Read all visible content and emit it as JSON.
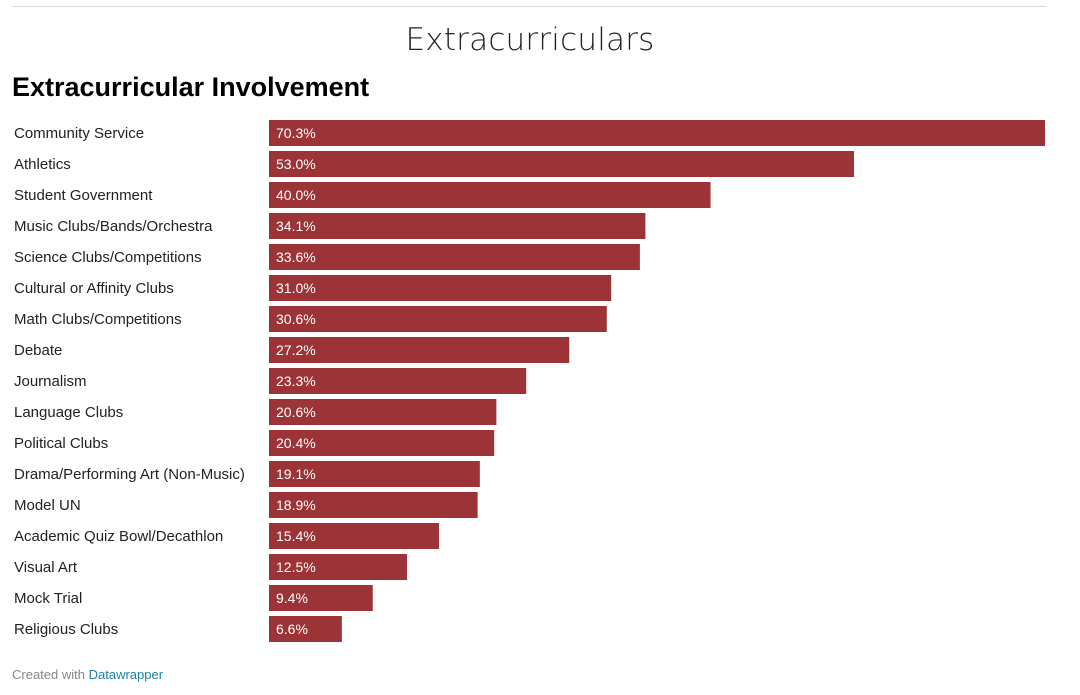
{
  "page": {
    "section_heading": "Extracurriculars"
  },
  "footer": {
    "prefix": "Created with",
    "link_text": "Datawrapper"
  },
  "colors": {
    "bar": "#9b3337",
    "bar_label": "#ffffff",
    "category_label": "#222222",
    "link": "#1d81a2"
  },
  "chart_data": {
    "type": "bar",
    "orientation": "horizontal",
    "title": "Extracurricular Involvement",
    "xlabel": "",
    "ylabel": "",
    "xlim": [
      0,
      70.3
    ],
    "grid": false,
    "value_suffix": "%",
    "categories": [
      "Community Service",
      "Athletics",
      "Student Government",
      "Music Clubs/Bands/Orchestra",
      "Science Clubs/Competitions",
      "Cultural or Affinity Clubs",
      "Math Clubs/Competitions",
      "Debate",
      "Journalism",
      "Language Clubs",
      "Political Clubs",
      "Drama/Performing Art (Non-Music)",
      "Model UN",
      "Academic Quiz Bowl/Decathlon",
      "Visual Art",
      "Mock Trial",
      "Religious Clubs"
    ],
    "values": [
      70.3,
      53.0,
      40.0,
      34.1,
      33.6,
      31.0,
      30.6,
      27.2,
      23.3,
      20.6,
      20.4,
      19.1,
      18.9,
      15.4,
      12.5,
      9.4,
      6.6
    ],
    "data_labels": [
      "70.3%",
      "53.0%",
      "40.0%",
      "34.1%",
      "33.6%",
      "31.0%",
      "30.6%",
      "27.2%",
      "23.3%",
      "20.6%",
      "20.4%",
      "19.1%",
      "18.9%",
      "15.4%",
      "12.5%",
      "9.4%",
      "6.6%"
    ]
  }
}
